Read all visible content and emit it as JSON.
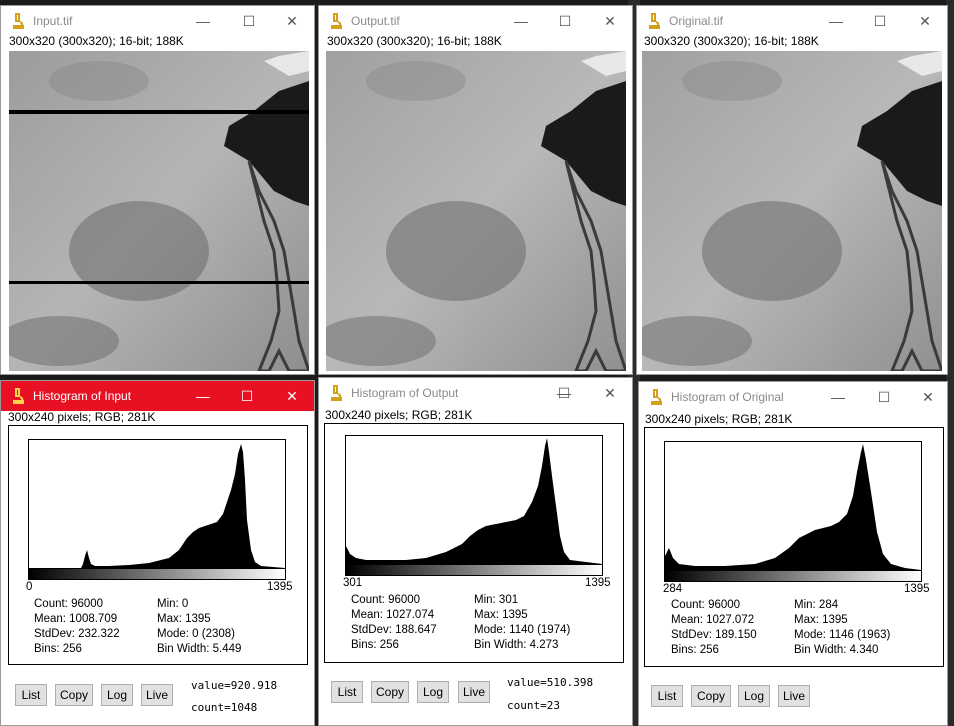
{
  "image_windows": [
    {
      "title": "Input.tif",
      "info": "300x320   (300x320); 16-bit; 188K"
    },
    {
      "title": "Output.tif",
      "info": "300x320   (300x320); 16-bit; 188K"
    },
    {
      "title": "Original.tif",
      "info": "300x320   (300x320); 16-bit; 188K"
    }
  ],
  "hist_windows": [
    {
      "title": "Histogram of Input",
      "info": "300x240 pixels; RGB; 281K",
      "range_min": "0",
      "range_max": "1395",
      "count": "Count: 96000",
      "mean": "Mean: 1008.709",
      "stddev": "StdDev: 232.322",
      "bins": "Bins: 256",
      "min": "Min: 0",
      "max": "Max: 1395",
      "mode": "Mode: 0 (2308)",
      "binwidth": "Bin Width: 5.449",
      "value": "value=920.918",
      "countv": "count=1048"
    },
    {
      "title": "Histogram of Output",
      "info": "300x240 pixels; RGB; 281K",
      "range_min": "301",
      "range_max": "1395",
      "count": "Count: 96000",
      "mean": "Mean: 1027.074",
      "stddev": "StdDev: 188.647",
      "bins": "Bins: 256",
      "min": "Min: 301",
      "max": "Max: 1395",
      "mode": "Mode: 1140 (1974)",
      "binwidth": "Bin Width: 4.273",
      "value": "value=510.398",
      "countv": "count=23"
    },
    {
      "title": "Histogram of Original",
      "info": "300x240 pixels; RGB; 281K",
      "range_min": "284",
      "range_max": "1395",
      "count": "Count: 96000",
      "mean": "Mean: 1027.072",
      "stddev": "StdDev: 189.150",
      "bins": "Bins: 256",
      "min": "Min: 284",
      "max": "Max: 1395",
      "mode": "Mode: 1146 (1963)",
      "binwidth": "Bin Width: 4.340",
      "value": "",
      "countv": ""
    }
  ],
  "buttons": {
    "list": "List",
    "copy": "Copy",
    "log": "Log",
    "live": "Live"
  },
  "window_controls": {
    "minimize": "—",
    "maximize": "☐",
    "close": "✕"
  },
  "colors": {
    "active_title": "#e81123",
    "inactive_title_text": "#8a8a8a",
    "icon": "#d4a017"
  }
}
